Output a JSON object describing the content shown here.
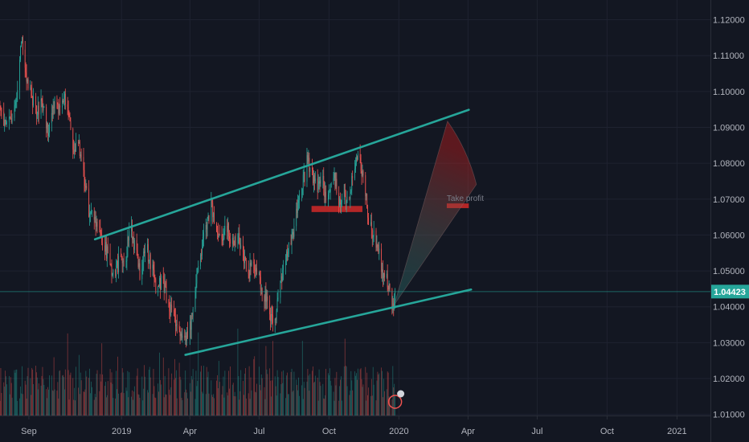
{
  "chart_data": {
    "type": "candlestick",
    "symbol_pair_note": "",
    "title": "",
    "xlabel": "",
    "ylabel": "",
    "x_tick_labels": [
      "Sep",
      "2019",
      "Apr",
      "Jul",
      "Oct",
      "2020",
      "Apr",
      "Jul",
      "Oct",
      "2021"
    ],
    "x_tick_dates": [
      "2018-09-01",
      "2019-01-01",
      "2019-04-01",
      "2019-07-01",
      "2019-10-01",
      "2020-01-01",
      "2020-04-01",
      "2020-07-01",
      "2020-10-01",
      "2021-01-01"
    ],
    "y_tick_labels": [
      "1.12000",
      "1.11000",
      "1.10000",
      "1.09000",
      "1.08000",
      "1.07000",
      "1.06000",
      "1.05000",
      "1.04000",
      "1.03000",
      "1.02000",
      "1.01000"
    ],
    "y_ticks": [
      1.12,
      1.11,
      1.1,
      1.09,
      1.08,
      1.07,
      1.06,
      1.05,
      1.04,
      1.03,
      1.02,
      1.01
    ],
    "ylim": [
      1.0097,
      1.1255
    ],
    "xlim": [
      "2018-07-25",
      "2021-02-14"
    ],
    "grid": true,
    "last_price": 1.04423,
    "last_price_label": "1.04423",
    "colors": {
      "background": "#131722",
      "grid": "#1e2230",
      "up": "#26a69a",
      "down": "#ef5350",
      "channel": "#26a69a",
      "price_tag": "#26a69a",
      "zone": "#c62828"
    },
    "price_path": [
      [
        "2018-07-25",
        1.096
      ],
      [
        "2018-08-02",
        1.09
      ],
      [
        "2018-08-10",
        1.092
      ],
      [
        "2018-08-16",
        1.098
      ],
      [
        "2018-08-22",
        1.115
      ],
      [
        "2018-08-28",
        1.105
      ],
      [
        "2018-09-05",
        1.099
      ],
      [
        "2018-09-12",
        1.093
      ],
      [
        "2018-09-18",
        1.098
      ],
      [
        "2018-09-26",
        1.089
      ],
      [
        "2018-10-04",
        1.097
      ],
      [
        "2018-10-12",
        1.095
      ],
      [
        "2018-10-18",
        1.099
      ],
      [
        "2018-10-24",
        1.091
      ],
      [
        "2018-10-30",
        1.083
      ],
      [
        "2018-11-05",
        1.087
      ],
      [
        "2018-11-12",
        1.076
      ],
      [
        "2018-11-20",
        1.066
      ],
      [
        "2018-11-28",
        1.064
      ],
      [
        "2018-12-06",
        1.059
      ],
      [
        "2018-12-14",
        1.054
      ],
      [
        "2018-12-22",
        1.049
      ],
      [
        "2018-12-30",
        1.053
      ],
      [
        "2019-01-06",
        1.051
      ],
      [
        "2019-01-12",
        1.064
      ],
      [
        "2019-01-18",
        1.057
      ],
      [
        "2019-01-25",
        1.049
      ],
      [
        "2019-02-02",
        1.057
      ],
      [
        "2019-02-09",
        1.052
      ],
      [
        "2019-02-16",
        1.044
      ],
      [
        "2019-02-24",
        1.048
      ],
      [
        "2019-03-03",
        1.041
      ],
      [
        "2019-03-10",
        1.037
      ],
      [
        "2019-03-17",
        1.034
      ],
      [
        "2019-03-24",
        1.031
      ],
      [
        "2019-03-30",
        1.031
      ],
      [
        "2019-04-06",
        1.041
      ],
      [
        "2019-04-12",
        1.051
      ],
      [
        "2019-04-18",
        1.058
      ],
      [
        "2019-04-24",
        1.064
      ],
      [
        "2019-04-29",
        1.069
      ],
      [
        "2019-05-05",
        1.062
      ],
      [
        "2019-05-12",
        1.059
      ],
      [
        "2019-05-20",
        1.063
      ],
      [
        "2019-05-27",
        1.057
      ],
      [
        "2019-06-03",
        1.061
      ],
      [
        "2019-06-10",
        1.055
      ],
      [
        "2019-06-17",
        1.049
      ],
      [
        "2019-06-24",
        1.053
      ],
      [
        "2019-07-01",
        1.047
      ],
      [
        "2019-07-08",
        1.043
      ],
      [
        "2019-07-15",
        1.038
      ],
      [
        "2019-07-21",
        1.035
      ],
      [
        "2019-07-28",
        1.046
      ],
      [
        "2019-08-04",
        1.053
      ],
      [
        "2019-08-12",
        1.059
      ],
      [
        "2019-08-20",
        1.066
      ],
      [
        "2019-08-28",
        1.075
      ],
      [
        "2019-09-03",
        1.081
      ],
      [
        "2019-09-09",
        1.077
      ],
      [
        "2019-09-15",
        1.072
      ],
      [
        "2019-09-22",
        1.076
      ],
      [
        "2019-09-29",
        1.068
      ],
      [
        "2019-10-06",
        1.078
      ],
      [
        "2019-10-14",
        1.069
      ],
      [
        "2019-10-20",
        1.073
      ],
      [
        "2019-10-26",
        1.068
      ],
      [
        "2019-11-01",
        1.078
      ],
      [
        "2019-11-07",
        1.083
      ],
      [
        "2019-11-11",
        1.081
      ],
      [
        "2019-11-16",
        1.074
      ],
      [
        "2019-11-22",
        1.065
      ],
      [
        "2019-11-28",
        1.06
      ],
      [
        "2019-12-05",
        1.055
      ],
      [
        "2019-12-12",
        1.049
      ],
      [
        "2019-12-18",
        1.046
      ],
      [
        "2019-12-22",
        1.041
      ],
      [
        "2019-12-25",
        1.04
      ],
      [
        "2019-12-29",
        1.043
      ]
    ],
    "volume_scale_note": "",
    "channel_lines": [
      {
        "name": "",
        "from": [
          "2018-11-27",
          1.0588
        ],
        "to": [
          "2020-04-02",
          1.0949
        ]
      },
      {
        "name": "",
        "from": [
          "2019-03-26",
          1.0266
        ],
        "to": [
          "2020-04-05",
          1.0448
        ]
      }
    ],
    "projection_fan": {
      "origin": [
        "2019-12-26",
        1.0406
      ],
      "arc_start": [
        "2020-03-05",
        1.0917
      ],
      "arc_end": [
        "2020-04-12",
        1.0741
      ],
      "label": "Take profit",
      "label_at": [
        "2020-03-04",
        1.0695
      ]
    },
    "zones": [
      {
        "name": "",
        "from": [
          "2019-09-08",
          1.0664
        ],
        "to": [
          "2019-11-14",
          1.0681
        ]
      },
      {
        "name": "",
        "from": [
          "2020-03-04",
          1.0675
        ],
        "to": [
          "2020-04-02",
          1.0688
        ]
      }
    ]
  }
}
